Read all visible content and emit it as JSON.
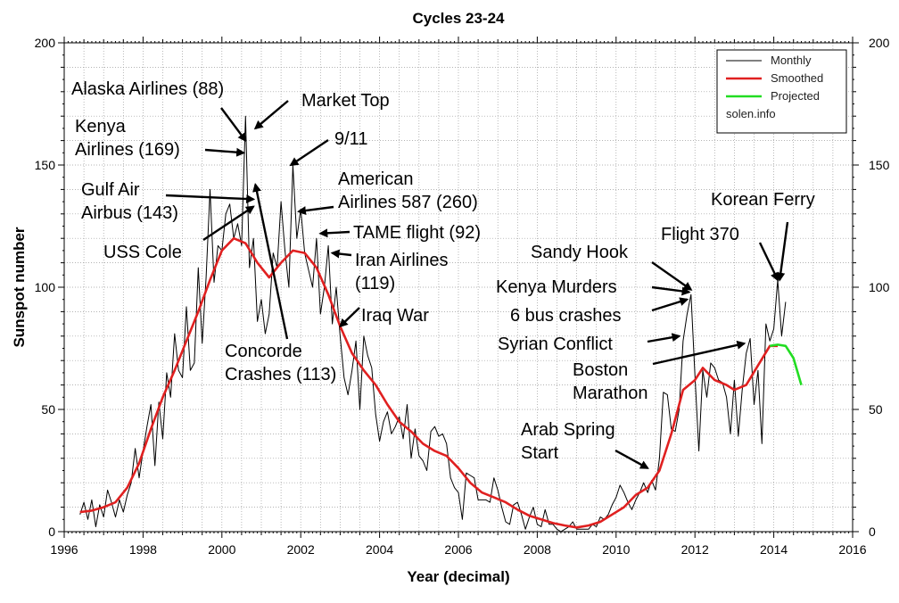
{
  "chart_data": {
    "type": "line",
    "title": "Cycles 23-24",
    "xlabel": "Year (decimal)",
    "ylabel": "Sunspot number",
    "xlim": [
      1996,
      2016
    ],
    "ylim": [
      0,
      200
    ],
    "x_ticks": [
      1996,
      1998,
      2000,
      2002,
      2004,
      2006,
      2008,
      2010,
      2012,
      2014,
      2016
    ],
    "y_ticks": [
      0,
      50,
      100,
      150,
      200
    ],
    "grid": true,
    "legend_position": "top-right",
    "legend": [
      "Monthly",
      "Smoothed",
      "Projected",
      "solen.info"
    ],
    "series": [
      {
        "name": "Monthly",
        "color": "#000000",
        "points": [
          [
            1996.4,
            7
          ],
          [
            1996.5,
            12
          ],
          [
            1996.6,
            5
          ],
          [
            1996.7,
            13
          ],
          [
            1996.8,
            2
          ],
          [
            1996.9,
            11
          ],
          [
            1997.0,
            6
          ],
          [
            1997.1,
            17
          ],
          [
            1997.2,
            12
          ],
          [
            1997.3,
            6
          ],
          [
            1997.4,
            13
          ],
          [
            1997.5,
            8
          ],
          [
            1997.6,
            15
          ],
          [
            1997.7,
            20
          ],
          [
            1997.8,
            34
          ],
          [
            1997.9,
            22
          ],
          [
            1998.0,
            33
          ],
          [
            1998.1,
            43
          ],
          [
            1998.2,
            52
          ],
          [
            1998.3,
            27
          ],
          [
            1998.4,
            53
          ],
          [
            1998.5,
            38
          ],
          [
            1998.6,
            65
          ],
          [
            1998.7,
            55
          ],
          [
            1998.8,
            81
          ],
          [
            1998.9,
            66
          ],
          [
            1999.0,
            63
          ],
          [
            1999.1,
            92
          ],
          [
            1999.2,
            66
          ],
          [
            1999.3,
            69
          ],
          [
            1999.4,
            108
          ],
          [
            1999.5,
            77
          ],
          [
            1999.6,
            104
          ],
          [
            1999.7,
            140
          ],
          [
            1999.8,
            102
          ],
          [
            1999.9,
            117
          ],
          [
            2000.0,
            115
          ],
          [
            2000.1,
            130
          ],
          [
            2000.2,
            134
          ],
          [
            2000.3,
            120
          ],
          [
            2000.4,
            126
          ],
          [
            2000.5,
            117
          ],
          [
            2000.6,
            170
          ],
          [
            2000.7,
            108
          ],
          [
            2000.8,
            120
          ],
          [
            2000.9,
            86
          ],
          [
            2001.0,
            95
          ],
          [
            2001.1,
            81
          ],
          [
            2001.2,
            89
          ],
          [
            2001.3,
            114
          ],
          [
            2001.4,
            108
          ],
          [
            2001.5,
            135
          ],
          [
            2001.6,
            115
          ],
          [
            2001.7,
            100
          ],
          [
            2001.8,
            150
          ],
          [
            2001.9,
            120
          ],
          [
            2002.0,
            132
          ],
          [
            2002.1,
            114
          ],
          [
            2002.2,
            107
          ],
          [
            2002.3,
            100
          ],
          [
            2002.4,
            120
          ],
          [
            2002.5,
            89
          ],
          [
            2002.6,
            100
          ],
          [
            2002.7,
            117
          ],
          [
            2002.8,
            85
          ],
          [
            2002.9,
            100
          ],
          [
            2003.0,
            80
          ],
          [
            2003.1,
            63
          ],
          [
            2003.2,
            56
          ],
          [
            2003.3,
            66
          ],
          [
            2003.4,
            78
          ],
          [
            2003.5,
            50
          ],
          [
            2003.6,
            80
          ],
          [
            2003.7,
            72
          ],
          [
            2003.8,
            67
          ],
          [
            2003.9,
            48
          ],
          [
            2004.0,
            37
          ],
          [
            2004.1,
            45
          ],
          [
            2004.2,
            49
          ],
          [
            2004.3,
            40
          ],
          [
            2004.4,
            43
          ],
          [
            2004.5,
            47
          ],
          [
            2004.6,
            38
          ],
          [
            2004.7,
            52
          ],
          [
            2004.8,
            30
          ],
          [
            2004.9,
            42
          ],
          [
            2005.0,
            31
          ],
          [
            2005.1,
            29
          ],
          [
            2005.2,
            25
          ],
          [
            2005.3,
            41
          ],
          [
            2005.4,
            43
          ],
          [
            2005.5,
            39
          ],
          [
            2005.6,
            40
          ],
          [
            2005.7,
            36
          ],
          [
            2005.8,
            22
          ],
          [
            2005.9,
            18
          ],
          [
            2006.0,
            16
          ],
          [
            2006.1,
            5
          ],
          [
            2006.2,
            24
          ],
          [
            2006.3,
            23
          ],
          [
            2006.4,
            22
          ],
          [
            2006.5,
            13
          ],
          [
            2006.6,
            13
          ],
          [
            2006.7,
            13
          ],
          [
            2006.8,
            12
          ],
          [
            2006.9,
            22
          ],
          [
            2007.0,
            17
          ],
          [
            2007.1,
            10
          ],
          [
            2007.2,
            4
          ],
          [
            2007.3,
            3
          ],
          [
            2007.4,
            11
          ],
          [
            2007.5,
            12
          ],
          [
            2007.6,
            7
          ],
          [
            2007.7,
            1
          ],
          [
            2007.8,
            6
          ],
          [
            2007.9,
            10
          ],
          [
            2008.0,
            3
          ],
          [
            2008.1,
            2
          ],
          [
            2008.2,
            9
          ],
          [
            2008.3,
            3
          ],
          [
            2008.4,
            3
          ],
          [
            2008.5,
            1
          ],
          [
            2008.6,
            0
          ],
          [
            2008.7,
            1
          ],
          [
            2008.8,
            2
          ],
          [
            2008.9,
            4
          ],
          [
            2009.0,
            1
          ],
          [
            2009.1,
            1
          ],
          [
            2009.2,
            1
          ],
          [
            2009.3,
            1
          ],
          [
            2009.4,
            3
          ],
          [
            2009.5,
            2
          ],
          [
            2009.6,
            6
          ],
          [
            2009.7,
            5
          ],
          [
            2009.8,
            7
          ],
          [
            2009.9,
            11
          ],
          [
            2010.0,
            14
          ],
          [
            2010.1,
            19
          ],
          [
            2010.2,
            16
          ],
          [
            2010.3,
            12
          ],
          [
            2010.4,
            9
          ],
          [
            2010.5,
            13
          ],
          [
            2010.6,
            16
          ],
          [
            2010.7,
            20
          ],
          [
            2010.8,
            16
          ],
          [
            2010.9,
            21
          ],
          [
            2011.0,
            17
          ],
          [
            2011.1,
            30
          ],
          [
            2011.2,
            57
          ],
          [
            2011.3,
            56
          ],
          [
            2011.4,
            42
          ],
          [
            2011.5,
            41
          ],
          [
            2011.6,
            50
          ],
          [
            2011.7,
            78
          ],
          [
            2011.8,
            89
          ],
          [
            2011.9,
            97
          ],
          [
            2012.0,
            64
          ],
          [
            2012.1,
            33
          ],
          [
            2012.2,
            66
          ],
          [
            2012.3,
            55
          ],
          [
            2012.4,
            69
          ],
          [
            2012.5,
            67
          ],
          [
            2012.6,
            62
          ],
          [
            2012.7,
            61
          ],
          [
            2012.8,
            55
          ],
          [
            2012.9,
            40
          ],
          [
            2013.0,
            62
          ],
          [
            2013.1,
            39
          ],
          [
            2013.2,
            58
          ],
          [
            2013.3,
            73
          ],
          [
            2013.4,
            79
          ],
          [
            2013.5,
            52
          ],
          [
            2013.6,
            66
          ],
          [
            2013.7,
            36
          ],
          [
            2013.8,
            85
          ],
          [
            2013.9,
            78
          ],
          [
            2014.0,
            83
          ],
          [
            2014.1,
            103
          ],
          [
            2014.2,
            80
          ],
          [
            2014.3,
            94
          ]
        ]
      },
      {
        "name": "Smoothed",
        "color": "#e02020",
        "points": [
          [
            1996.4,
            8
          ],
          [
            1996.7,
            8.6
          ],
          [
            1997.0,
            10
          ],
          [
            1997.3,
            12
          ],
          [
            1997.6,
            18
          ],
          [
            1997.9,
            28
          ],
          [
            1998.2,
            42
          ],
          [
            1998.5,
            55
          ],
          [
            1998.8,
            66
          ],
          [
            1999.1,
            78
          ],
          [
            1999.4,
            90
          ],
          [
            1999.7,
            103
          ],
          [
            2000.0,
            115
          ],
          [
            2000.3,
            120
          ],
          [
            2000.6,
            118
          ],
          [
            2000.9,
            110
          ],
          [
            2001.2,
            104
          ],
          [
            2001.5,
            110
          ],
          [
            2001.8,
            115
          ],
          [
            2002.1,
            114
          ],
          [
            2002.4,
            108
          ],
          [
            2002.7,
            97
          ],
          [
            2003.0,
            84
          ],
          [
            2003.3,
            73
          ],
          [
            2003.6,
            66
          ],
          [
            2003.9,
            60
          ],
          [
            2004.2,
            52
          ],
          [
            2004.5,
            45
          ],
          [
            2004.8,
            41
          ],
          [
            2005.1,
            36
          ],
          [
            2005.4,
            33
          ],
          [
            2005.7,
            31
          ],
          [
            2006.0,
            26
          ],
          [
            2006.3,
            20
          ],
          [
            2006.6,
            16
          ],
          [
            2006.9,
            14
          ],
          [
            2007.2,
            12
          ],
          [
            2007.5,
            9
          ],
          [
            2007.8,
            6.5
          ],
          [
            2008.1,
            5
          ],
          [
            2008.4,
            3.5
          ],
          [
            2008.7,
            2.5
          ],
          [
            2009.0,
            1.7
          ],
          [
            2009.3,
            2.5
          ],
          [
            2009.6,
            4
          ],
          [
            2009.9,
            7
          ],
          [
            2010.2,
            10
          ],
          [
            2010.5,
            15
          ],
          [
            2010.8,
            18
          ],
          [
            2011.1,
            25
          ],
          [
            2011.4,
            40
          ],
          [
            2011.7,
            58
          ],
          [
            2012.0,
            62
          ],
          [
            2012.2,
            67
          ],
          [
            2012.5,
            62
          ],
          [
            2012.8,
            60
          ],
          [
            2013.0,
            58
          ],
          [
            2013.3,
            60
          ],
          [
            2013.6,
            68
          ],
          [
            2013.9,
            76
          ],
          [
            2014.1,
            76
          ]
        ]
      },
      {
        "name": "Projected",
        "color": "#22dd22",
        "points": [
          [
            2013.9,
            76
          ],
          [
            2014.1,
            76.5
          ],
          [
            2014.3,
            76
          ],
          [
            2014.5,
            71
          ],
          [
            2014.7,
            60
          ]
        ]
      }
    ],
    "annotations": [
      {
        "text": "Alaska Airlines (88)",
        "x": 2000.6,
        "y": 160,
        "arrow": "true"
      },
      {
        "text": "Market Top",
        "x": 2000.85,
        "y": 165,
        "arrow": "true"
      },
      {
        "text": "Kenya Airlines (169)",
        "x": 2000.55,
        "y": 155,
        "arrow": "true"
      },
      {
        "text": "9/11",
        "x": 2001.75,
        "y": 150,
        "arrow": "true"
      },
      {
        "text": "Gulf Air Airbus (143)",
        "x": 2000.8,
        "y": 136,
        "arrow": "true"
      },
      {
        "text": "American Airlines 587 (260)",
        "x": 2001.95,
        "y": 131,
        "arrow": "true"
      },
      {
        "text": "USS Cole",
        "x": 2000.8,
        "y": 133,
        "arrow": "true"
      },
      {
        "text": "TAME flight (92)",
        "x": 2002.5,
        "y": 122,
        "arrow": "true"
      },
      {
        "text": "Iran Airlines (119)",
        "x": 2002.8,
        "y": 114,
        "arrow": "true"
      },
      {
        "text": "Iraq War",
        "x": 2003.0,
        "y": 84,
        "arrow": "true"
      },
      {
        "text": "Concorde Crashes (113)",
        "x": 2000.85,
        "y": 142,
        "arrow": "true"
      },
      {
        "text": "Korean Ferry",
        "x": 2014.15,
        "y": 103,
        "arrow": "true"
      },
      {
        "text": "Flight 370",
        "x": 2014.1,
        "y": 103,
        "arrow": "true"
      },
      {
        "text": "Sandy Hook",
        "x": 2011.9,
        "y": 99,
        "arrow": "true"
      },
      {
        "text": "Kenya Murders",
        "x": 2011.85,
        "y": 98,
        "arrow": "true"
      },
      {
        "text": "6 bus crashes",
        "x": 2011.8,
        "y": 95,
        "arrow": "true"
      },
      {
        "text": "Syrian Conflict",
        "x": 2011.6,
        "y": 80,
        "arrow": "true"
      },
      {
        "text": "Boston Marathon",
        "x": 2013.25,
        "y": 77,
        "arrow": "true"
      },
      {
        "text": "Arab Spring Start",
        "x": 2010.8,
        "y": 26,
        "arrow": "true"
      }
    ]
  }
}
